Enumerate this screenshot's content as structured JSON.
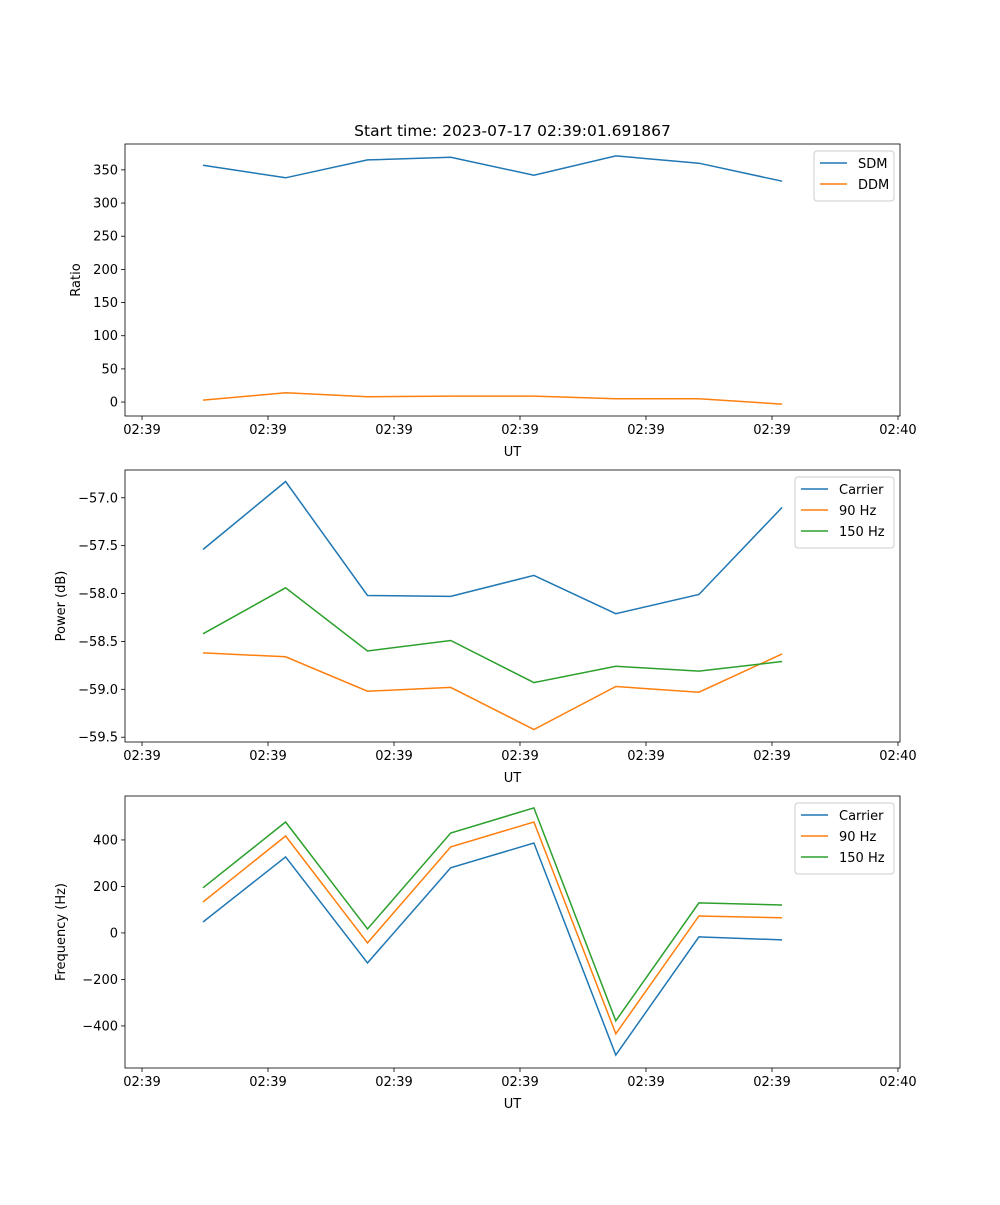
{
  "chart_data": [
    {
      "type": "line",
      "title": "Start time: 2023-07-17 02:39:01.691867",
      "xlabel": "UT",
      "ylabel": "Ratio",
      "x_seconds_after_0239": [
        4.84,
        11.4,
        17.9,
        24.5,
        31.1,
        37.6,
        44.2,
        50.8
      ],
      "xlim": [
        -1.35,
        60.16
      ],
      "xticks": [
        0,
        10,
        20,
        30,
        40,
        50,
        60
      ],
      "xtick_labels": [
        "02:39",
        "02:39",
        "02:39",
        "02:39",
        "02:39",
        "02:39",
        "02:40"
      ],
      "ylim": [
        -21,
        389
      ],
      "yticks": [
        0,
        50,
        100,
        150,
        200,
        250,
        300,
        350
      ],
      "ytick_labels": [
        "0",
        "50",
        "100",
        "150",
        "200",
        "250",
        "300",
        "350"
      ],
      "legend_position": "upper right",
      "series": [
        {
          "name": "SDM",
          "color": "#1f77b4",
          "values": [
            357,
            338,
            365,
            369,
            342,
            371,
            360,
            333
          ]
        },
        {
          "name": "DDM",
          "color": "#ff7f0e",
          "values": [
            3,
            14,
            8,
            9,
            9,
            5,
            5,
            -3
          ]
        }
      ]
    },
    {
      "type": "line",
      "title": "",
      "xlabel": "UT",
      "ylabel": "Power (dB)",
      "x_seconds_after_0239": [
        4.84,
        11.4,
        17.9,
        24.5,
        31.1,
        37.6,
        44.2,
        50.8
      ],
      "xlim": [
        -1.35,
        60.16
      ],
      "xticks": [
        0,
        10,
        20,
        30,
        40,
        50,
        60
      ],
      "xtick_labels": [
        "02:39",
        "02:39",
        "02:39",
        "02:39",
        "02:39",
        "02:39",
        "02:40"
      ],
      "ylim": [
        -59.55,
        -56.71
      ],
      "yticks": [
        -59.5,
        -59.0,
        -58.5,
        -58.0,
        -57.5,
        -57.0
      ],
      "ytick_labels": [
        "−59.5",
        "−59.0",
        "−58.5",
        "−58.0",
        "−57.5",
        "−57.0"
      ],
      "legend_position": "upper right",
      "series": [
        {
          "name": "Carrier",
          "color": "#1f77b4",
          "values": [
            -57.54,
            -56.83,
            -58.02,
            -58.03,
            -57.81,
            -58.21,
            -58.01,
            -57.1
          ]
        },
        {
          "name": "90 Hz",
          "color": "#ff7f0e",
          "values": [
            -58.62,
            -58.66,
            -59.02,
            -58.98,
            -59.42,
            -58.97,
            -59.03,
            -58.63
          ]
        },
        {
          "name": "150 Hz",
          "color": "#2ca02c",
          "values": [
            -58.42,
            -57.94,
            -58.6,
            -58.49,
            -58.93,
            -58.76,
            -58.81,
            -58.71
          ]
        }
      ]
    },
    {
      "type": "line",
      "title": "",
      "xlabel": "UT",
      "ylabel": "Frequency (Hz)",
      "x_seconds_after_0239": [
        4.84,
        11.4,
        17.9,
        24.5,
        31.1,
        37.6,
        44.2,
        50.8
      ],
      "xlim": [
        -1.35,
        60.16
      ],
      "xticks": [
        0,
        10,
        20,
        30,
        40,
        50,
        60
      ],
      "xtick_labels": [
        "02:39",
        "02:39",
        "02:39",
        "02:39",
        "02:39",
        "02:39",
        "02:40"
      ],
      "ylim": [
        -581,
        589
      ],
      "yticks": [
        -400,
        -200,
        0,
        200,
        400
      ],
      "ytick_labels": [
        "−400",
        "−200",
        "0",
        "200",
        "400"
      ],
      "legend_position": "upper right",
      "series": [
        {
          "name": "Carrier",
          "color": "#1f77b4",
          "values": [
            47,
            327,
            -129,
            280,
            387,
            -525,
            -17,
            -30
          ]
        },
        {
          "name": "90 Hz",
          "color": "#ff7f0e",
          "values": [
            133,
            417,
            -43,
            370,
            477,
            -434,
            73,
            65
          ]
        },
        {
          "name": "150 Hz",
          "color": "#2ca02c",
          "values": [
            194,
            477,
            17,
            430,
            538,
            -378,
            129,
            120
          ]
        }
      ]
    }
  ]
}
